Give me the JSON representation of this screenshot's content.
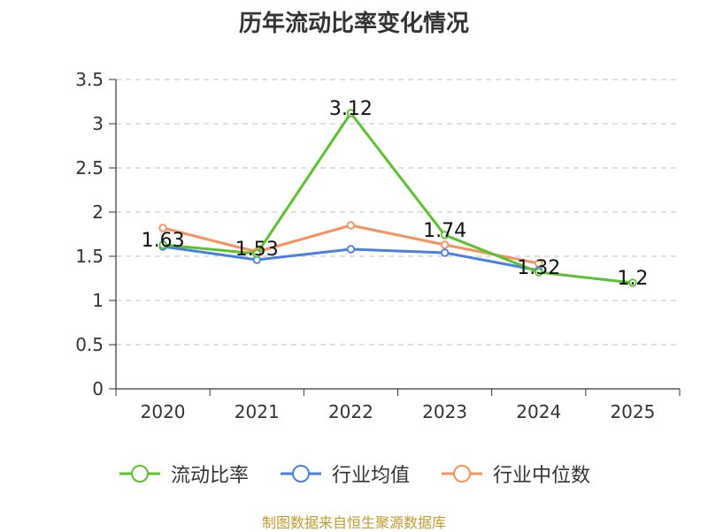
{
  "page": {
    "title": "历年流动比率变化情况",
    "source": "制图数据来自恒生聚源数据库"
  },
  "chart_data": {
    "type": "line",
    "title": "历年流动比率变化情况",
    "xlabel": "",
    "ylabel": "",
    "categories": [
      "2020",
      "2021",
      "2022",
      "2023",
      "2024",
      "2025"
    ],
    "ylim": [
      0,
      3.5
    ],
    "yticks": [
      "0",
      "0.5",
      "1",
      "1.5",
      "2",
      "2.5",
      "3",
      "3.5"
    ],
    "grid": "horizontal dashed",
    "legend_position": "bottom",
    "series": [
      {
        "name": "流动比率",
        "color": "#5cc12e",
        "values": [
          1.63,
          1.53,
          3.12,
          1.74,
          1.32,
          1.2
        ],
        "labels": [
          "1.63",
          "1.53",
          "3.12",
          "1.74",
          "1.32",
          "1.2"
        ]
      },
      {
        "name": "行业均值",
        "color": "#4a7fe0",
        "values": [
          1.61,
          1.46,
          1.58,
          1.54,
          1.34,
          null
        ]
      },
      {
        "name": "行业中位数",
        "color": "#f5915a",
        "values": [
          1.82,
          1.55,
          1.85,
          1.63,
          1.42,
          null
        ]
      }
    ]
  }
}
